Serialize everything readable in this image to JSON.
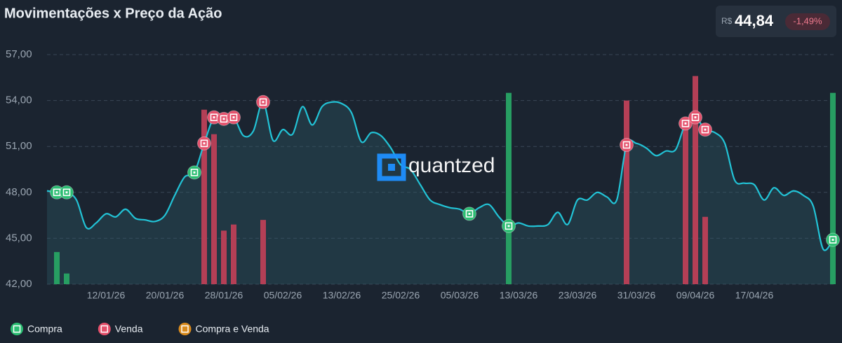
{
  "chart_data": {
    "type": "line",
    "title": "Movimentações x Preço da Ação",
    "quote": {
      "currency": "R$",
      "price": {
        "value": 44.84,
        "label": "44,84"
      },
      "change": {
        "value": -1.49,
        "label": "-1,49%"
      }
    },
    "watermark": "quantzed",
    "line_color": "#22c3d6",
    "grid": true,
    "ylim": [
      42,
      57
    ],
    "yticks": [
      {
        "value": 42,
        "label": "42,00"
      },
      {
        "value": 45,
        "label": "45,00"
      },
      {
        "value": 48,
        "label": "48,00"
      },
      {
        "value": 51,
        "label": "51,00"
      },
      {
        "value": 54,
        "label": "54,00"
      },
      {
        "value": 57,
        "label": "57,00"
      }
    ],
    "categories": [
      null,
      null,
      null,
      null,
      null,
      null,
      "12/01/26",
      null,
      null,
      null,
      null,
      null,
      "20/01/26",
      null,
      null,
      null,
      null,
      null,
      "28/01/26",
      null,
      null,
      null,
      null,
      null,
      "05/02/26",
      null,
      null,
      null,
      null,
      null,
      "13/02/26",
      null,
      null,
      null,
      null,
      null,
      "25/02/26",
      null,
      null,
      null,
      null,
      null,
      "05/03/26",
      null,
      null,
      null,
      null,
      null,
      "13/03/26",
      null,
      null,
      null,
      null,
      null,
      "23/03/26",
      null,
      null,
      null,
      null,
      null,
      "31/03/26",
      null,
      null,
      null,
      null,
      null,
      "09/04/26",
      null,
      null,
      null,
      null,
      null,
      "17/04/26",
      null,
      null,
      null,
      null,
      null,
      null,
      null,
      null
    ],
    "values": [
      48.1,
      48.0,
      48.0,
      47.5,
      45.7,
      46.0,
      46.6,
      46.4,
      46.9,
      46.3,
      46.2,
      46.1,
      46.5,
      47.8,
      49.0,
      49.3,
      51.2,
      52.9,
      52.8,
      52.9,
      51.7,
      52.0,
      53.9,
      51.4,
      52.1,
      51.8,
      53.6,
      52.4,
      53.6,
      53.9,
      53.8,
      53.2,
      51.3,
      51.9,
      51.7,
      50.9,
      49.8,
      49.5,
      48.5,
      47.5,
      47.2,
      47.0,
      46.9,
      46.6,
      47.0,
      47.2,
      46.4,
      45.8,
      46.0,
      45.8,
      45.8,
      45.9,
      46.7,
      45.9,
      47.5,
      47.5,
      48.0,
      47.7,
      47.5,
      51.1,
      51.2,
      50.9,
      50.4,
      50.7,
      50.8,
      52.5,
      52.9,
      52.1,
      51.9,
      51.2,
      48.8,
      48.6,
      48.5,
      47.5,
      48.3,
      47.8,
      48.1,
      47.8,
      47.1,
      44.3,
      44.9
    ],
    "series": [
      {
        "name": "Compra",
        "color": "#2bbd72",
        "bar_color": "#279e62",
        "values": [
          null,
          44.1,
          42.7,
          null,
          null,
          null,
          null,
          null,
          null,
          null,
          null,
          null,
          null,
          null,
          null,
          null,
          null,
          null,
          null,
          null,
          null,
          null,
          null,
          null,
          null,
          null,
          null,
          null,
          null,
          null,
          null,
          null,
          null,
          null,
          null,
          null,
          null,
          null,
          null,
          null,
          null,
          null,
          null,
          null,
          null,
          null,
          null,
          54.5,
          null,
          null,
          null,
          null,
          null,
          null,
          null,
          null,
          null,
          null,
          null,
          null,
          null,
          null,
          null,
          null,
          null,
          null,
          null,
          null,
          null,
          null,
          null,
          null,
          null,
          null,
          null,
          null,
          null,
          null,
          null,
          null,
          54.5
        ],
        "points": [
          null,
          48.0,
          48.0,
          null,
          null,
          null,
          null,
          null,
          null,
          null,
          null,
          null,
          null,
          null,
          null,
          49.3,
          null,
          null,
          null,
          null,
          null,
          null,
          null,
          null,
          null,
          null,
          null,
          null,
          null,
          null,
          null,
          null,
          null,
          null,
          null,
          null,
          null,
          null,
          null,
          null,
          null,
          null,
          null,
          46.6,
          null,
          null,
          null,
          45.8,
          null,
          null,
          null,
          null,
          null,
          null,
          null,
          null,
          null,
          null,
          null,
          null,
          null,
          null,
          null,
          null,
          null,
          null,
          null,
          null,
          null,
          null,
          null,
          null,
          null,
          null,
          null,
          null,
          null,
          null,
          null,
          null,
          44.9
        ]
      },
      {
        "name": "Venda",
        "color": "#e4506b",
        "bar_color": "#b43f56",
        "values": [
          null,
          null,
          null,
          null,
          null,
          null,
          null,
          null,
          null,
          null,
          null,
          null,
          null,
          null,
          null,
          null,
          53.4,
          51.8,
          45.5,
          45.9,
          null,
          null,
          46.2,
          null,
          null,
          null,
          null,
          null,
          null,
          null,
          null,
          null,
          null,
          null,
          null,
          null,
          null,
          null,
          null,
          null,
          null,
          null,
          null,
          null,
          null,
          null,
          null,
          null,
          null,
          null,
          null,
          null,
          null,
          null,
          null,
          null,
          null,
          null,
          null,
          54.0,
          null,
          null,
          null,
          null,
          null,
          52.5,
          55.6,
          46.4,
          null,
          null,
          null,
          null,
          null,
          null,
          null,
          null,
          null,
          null,
          null,
          null,
          null
        ],
        "points": [
          null,
          null,
          null,
          null,
          null,
          null,
          null,
          null,
          null,
          null,
          null,
          null,
          null,
          null,
          null,
          null,
          51.2,
          52.9,
          52.8,
          52.9,
          null,
          null,
          53.9,
          null,
          null,
          null,
          null,
          null,
          null,
          null,
          null,
          null,
          null,
          null,
          null,
          null,
          null,
          null,
          null,
          null,
          null,
          null,
          null,
          null,
          null,
          null,
          null,
          null,
          null,
          null,
          null,
          null,
          null,
          null,
          null,
          null,
          null,
          null,
          null,
          51.1,
          null,
          null,
          null,
          null,
          null,
          52.5,
          52.9,
          52.1,
          null,
          null,
          null,
          null,
          null,
          null,
          null,
          null,
          null,
          null,
          null,
          null,
          null
        ]
      },
      {
        "name": "Compra e Venda",
        "color": "#d98a1c"
      }
    ]
  }
}
